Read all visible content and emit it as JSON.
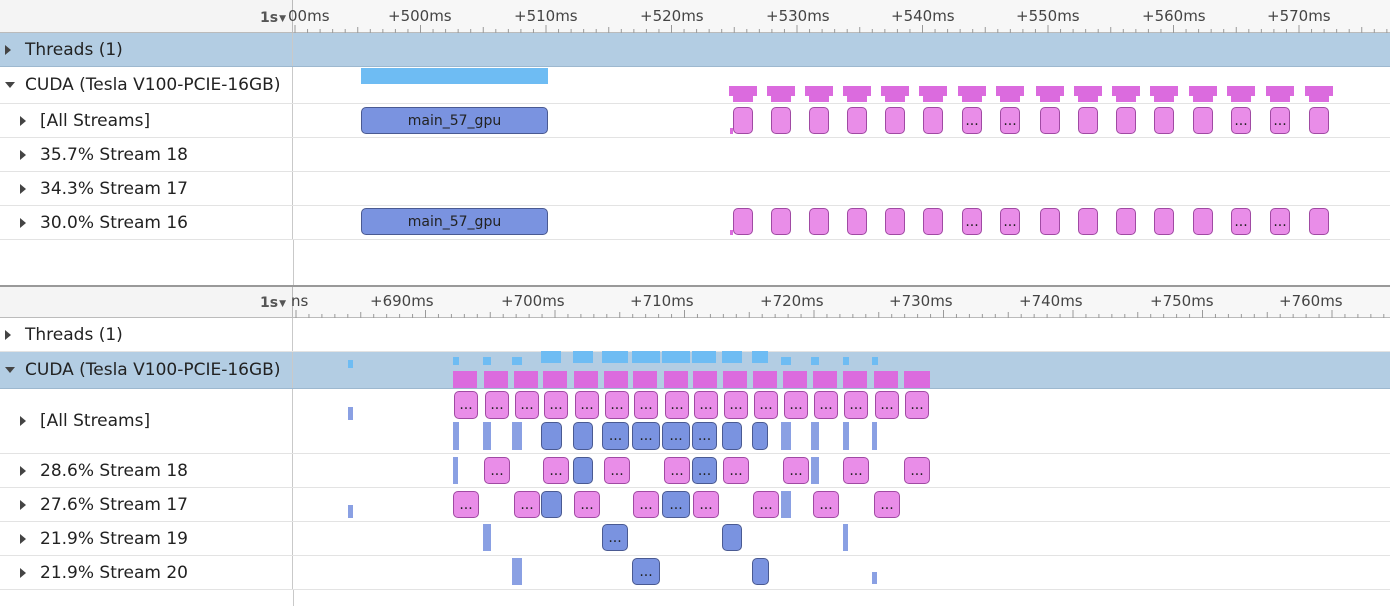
{
  "panels": [
    {
      "scale_label": "1s",
      "ruler_labels": [
        "00ms",
        "+500ms",
        "+510ms",
        "+520ms",
        "+530ms",
        "+540ms",
        "+550ms",
        "+560ms",
        "+570ms"
      ],
      "rows": [
        {
          "label": "Threads (1)",
          "expanded": false,
          "selected": true
        },
        {
          "label": "CUDA (Tesla V100-PCIE-16GB)",
          "expanded": true,
          "selected": false
        },
        {
          "label": "[All Streams]",
          "expanded": false,
          "selected": false
        },
        {
          "label": "35.7% Stream 18",
          "expanded": false,
          "selected": false
        },
        {
          "label": "34.3% Stream 17",
          "expanded": false,
          "selected": false
        },
        {
          "label": "30.0% Stream 16",
          "expanded": false,
          "selected": false
        }
      ],
      "kernel_name": "main_57_gpu",
      "ellipsis": "..."
    },
    {
      "scale_label": "1s",
      "ruler_labels": [
        "ns",
        "+690ms",
        "+700ms",
        "+710ms",
        "+720ms",
        "+730ms",
        "+740ms",
        "+750ms",
        "+760ms"
      ],
      "rows": [
        {
          "label": "Threads (1)",
          "expanded": false,
          "selected": false
        },
        {
          "label": "CUDA (Tesla V100-PCIE-16GB)",
          "expanded": true,
          "selected": true
        },
        {
          "label": "[All Streams]",
          "expanded": false,
          "selected": false
        },
        {
          "label": "28.6% Stream 18",
          "expanded": false,
          "selected": false
        },
        {
          "label": "27.6% Stream 17",
          "expanded": false,
          "selected": false
        },
        {
          "label": "21.9% Stream 19",
          "expanded": false,
          "selected": false
        },
        {
          "label": "21.9% Stream 20",
          "expanded": false,
          "selected": false
        }
      ],
      "ellipsis": "..."
    }
  ],
  "colors": {
    "memcpy_kernel": "#7a93e0",
    "compute_kernel": "#e98de8",
    "activity_blue": "#6ebcf3",
    "activity_pink": "#db6bde",
    "selected_row": "#b3cde3"
  }
}
